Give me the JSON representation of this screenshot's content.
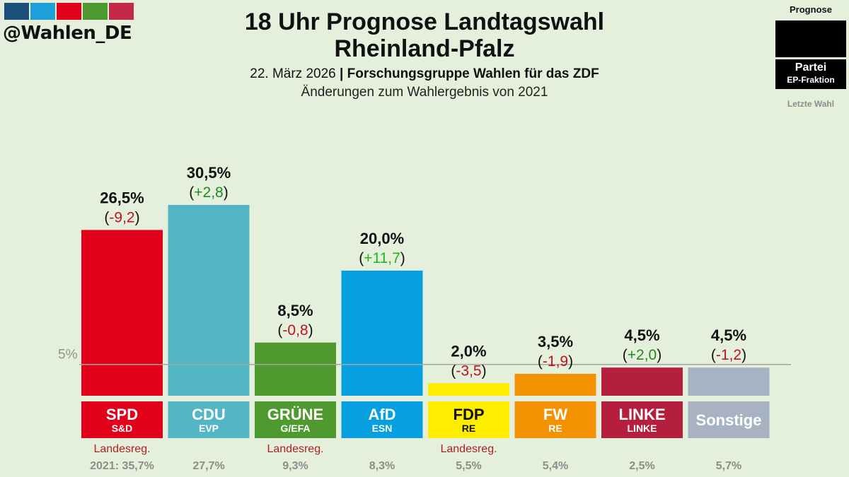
{
  "handle": "@Wahlen_DE",
  "logo_colors": [
    "#1b4f78",
    "#1e9fd8",
    "#e3001b",
    "#4f9a2e",
    "#c42a48"
  ],
  "title_line1": "18 Uhr Prognose Landtagswahl",
  "title_line2": "Rheinland-Pfalz",
  "date": "22. März 2026",
  "separator": "|",
  "source": "Forschungsgruppe Wahlen für das ZDF",
  "subtitle": "Änderungen zum Wahlergebnis von 2021",
  "legend": {
    "prognose": "Prognose",
    "party": "Partei",
    "fraction": "EP-Fraktion",
    "last_election": "Letzte Wahl"
  },
  "chart_data": {
    "type": "bar",
    "threshold": {
      "value": 5,
      "label": "5%"
    },
    "ylim": [
      0,
      30.5
    ],
    "parties": [
      {
        "name": "SPD",
        "fraction": "S&D",
        "value": 26.5,
        "value_label": "26,5%",
        "change": -9.2,
        "change_label": "-9,2",
        "color": "#e3001b",
        "label_text_color": "#ffffff",
        "sub_text_color": "#ffffff",
        "government": "Landesreg.",
        "last_result": "2021: 35,7%"
      },
      {
        "name": "CDU",
        "fraction": "EVP",
        "value": 30.5,
        "value_label": "30,5%",
        "change": 2.8,
        "change_label": "+2,8",
        "color": "#52b6c4",
        "label_text_color": "#ffffff",
        "sub_text_color": "#ffffff",
        "government": "",
        "last_result": "27,7%"
      },
      {
        "name": "GRÜNE",
        "fraction": "G/EFA",
        "value": 8.5,
        "value_label": "8,5%",
        "change": -0.8,
        "change_label": "-0,8",
        "color": "#4f9a2e",
        "label_text_color": "#ffffff",
        "sub_text_color": "#ffffff",
        "government": "Landesreg.",
        "last_result": "9,3%"
      },
      {
        "name": "AfD",
        "fraction": "ESN",
        "value": 20.0,
        "value_label": "20,0%",
        "change": 11.7,
        "change_label": "+11,7",
        "color": "#069fe0",
        "label_text_color": "#ffffff",
        "sub_text_color": "#ffffff",
        "government": "",
        "last_result": "8,3%"
      },
      {
        "name": "FDP",
        "fraction": "RE",
        "value": 2.0,
        "value_label": "2,0%",
        "change": -3.5,
        "change_label": "-3,5",
        "color": "#ffed00",
        "label_text_color": "#111111",
        "sub_text_color": "#111111",
        "government": "Landesreg.",
        "last_result": "5,5%"
      },
      {
        "name": "FW",
        "fraction": "RE",
        "value": 3.5,
        "value_label": "3,5%",
        "change": -1.9,
        "change_label": "-1,9",
        "color": "#f39200",
        "label_text_color": "#ffffff",
        "sub_text_color": "#ffffff",
        "government": "",
        "last_result": "5,4%"
      },
      {
        "name": "LINKE",
        "fraction": "LINKE",
        "value": 4.5,
        "value_label": "4,5%",
        "change": 2.0,
        "change_label": "+2,0",
        "color": "#b51f3e",
        "label_text_color": "#ffffff",
        "sub_text_color": "#ffffff",
        "government": "",
        "last_result": "2,5%"
      },
      {
        "name": "Sonstige",
        "fraction": "",
        "value": 4.5,
        "value_label": "4,5%",
        "change": -1.2,
        "change_label": "-1,2",
        "color": "#a7b2c2",
        "label_text_color": "#ffffff",
        "sub_text_color": "#ffffff",
        "government": "",
        "last_result": "5,7%"
      }
    ],
    "colors": {
      "negative_change": "#c0121c",
      "positive_change_small": "#1f8a1f",
      "positive_change_large": "#22b522",
      "government_label": "#b02020",
      "last_result_text": "#8a8f8a",
      "threshold_line": "#a0a8a0"
    }
  }
}
